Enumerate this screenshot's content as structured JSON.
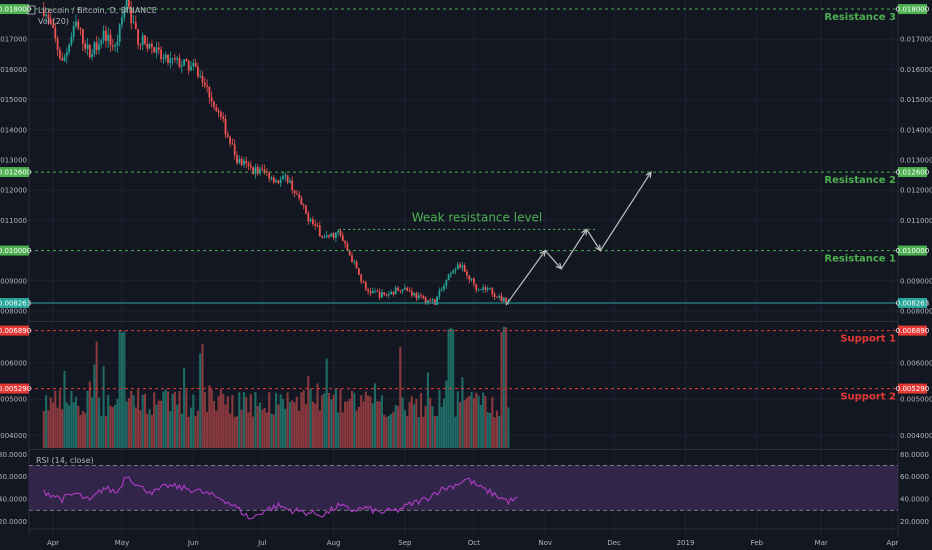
{
  "window": {
    "title": "Litecoin / Bitcoin, D, BINANCE"
  },
  "legend": {
    "main": "Litecoin / Bitcoin, D, BINANCE",
    "volume": "Vol (20)",
    "rsi": "RSI (14, close)"
  },
  "colors": {
    "background": "#131722",
    "grid": "#1e2230",
    "up": "#26a69a",
    "down": "#ef5350",
    "volume_up": "#1f6b66",
    "volume_down": "#8a3a3e",
    "resistance": "#4caf50",
    "support": "#e53935",
    "current_price": "#26a69a",
    "projection": "#c0c0c0",
    "rsi_line": "#b23cc6",
    "rsi_band": "#3a2a55",
    "axis_text": "#b2b5be"
  },
  "chart_data": [
    {
      "type": "candlestick",
      "title": "Litecoin / Bitcoin, D, BINANCE",
      "y_ticks": [
        "0.017000",
        "0.016000",
        "0.015000",
        "0.014000",
        "0.013000",
        "0.012000",
        "0.011000",
        "0.009000",
        "0.008000"
      ],
      "ylim": [
        0.0077,
        0.0183
      ],
      "x_ticks": [
        {
          "label": "Apr",
          "day": 0
        },
        {
          "label": "May",
          "day": 30
        },
        {
          "label": "Jun",
          "day": 61
        },
        {
          "label": "Jul",
          "day": 91
        },
        {
          "label": "Aug",
          "day": 122
        },
        {
          "label": "Sep",
          "day": 153
        },
        {
          "label": "Oct",
          "day": 183
        },
        {
          "label": "Nov",
          "day": 214
        },
        {
          "label": "Dec",
          "day": 244
        },
        {
          "label": "2019",
          "day": 275
        },
        {
          "label": "Feb",
          "day": 306
        },
        {
          "label": "Mar",
          "day": 334
        },
        {
          "label": "Apr",
          "day": 365
        }
      ],
      "price_path": [
        [
          -4,
          0.018
        ],
        [
          0,
          0.0172
        ],
        [
          4,
          0.0162
        ],
        [
          10,
          0.0175
        ],
        [
          16,
          0.0165
        ],
        [
          22,
          0.0172
        ],
        [
          27,
          0.0167
        ],
        [
          32,
          0.0182
        ],
        [
          37,
          0.017
        ],
        [
          42,
          0.0168
        ],
        [
          48,
          0.0163
        ],
        [
          56,
          0.0162
        ],
        [
          62,
          0.016
        ],
        [
          68,
          0.0152
        ],
        [
          74,
          0.0142
        ],
        [
          80,
          0.013
        ],
        [
          86,
          0.0127
        ],
        [
          92,
          0.0126
        ],
        [
          98,
          0.0123
        ],
        [
          102,
          0.0124
        ],
        [
          110,
          0.0112
        ],
        [
          118,
          0.0104
        ],
        [
          124,
          0.0106
        ],
        [
          130,
          0.0097
        ],
        [
          136,
          0.0087
        ],
        [
          144,
          0.0085
        ],
        [
          152,
          0.0088
        ],
        [
          160,
          0.0084
        ],
        [
          166,
          0.0083
        ],
        [
          172,
          0.0091
        ],
        [
          176,
          0.0096
        ],
        [
          184,
          0.0088
        ],
        [
          190,
          0.0087
        ],
        [
          194,
          0.0084
        ],
        [
          198,
          0.0083
        ]
      ],
      "levels": [
        {
          "name": "Resistance 3",
          "price": 0.018,
          "tag": "0.018000",
          "kind": "resistance"
        },
        {
          "name": "Resistance 2",
          "price": 0.0126,
          "tag": "0.012600",
          "kind": "resistance"
        },
        {
          "name": "Resistance 1",
          "price": 0.01,
          "tag": "0.010000",
          "kind": "resistance"
        }
      ],
      "weak_resistance": {
        "label": "Weak resistance level",
        "price": 0.0107,
        "from_day": 124,
        "to_day": 236
      },
      "current_price": {
        "value": 0.008263,
        "tag": "0.008263"
      },
      "projection": [
        [
          197,
          0.0082
        ],
        [
          214,
          0.01
        ],
        [
          221,
          0.0094
        ],
        [
          232,
          0.0107
        ],
        [
          238,
          0.01
        ],
        [
          260,
          0.0126
        ]
      ]
    },
    {
      "type": "bar",
      "title": "Vol (20)",
      "y_ticks": [
        "0.006000",
        "0.005000",
        "0.004000"
      ],
      "ylim": [
        0.00365,
        0.0071
      ],
      "levels": [
        {
          "name": "Support 1",
          "price": 0.00689,
          "tag": "0.006890",
          "kind": "support"
        },
        {
          "name": "Support 2",
          "price": 0.00529,
          "tag": "0.005290",
          "kind": "support"
        }
      ]
    },
    {
      "type": "line",
      "title": "RSI (14, close)",
      "y_ticks": [
        "80.0000",
        "60.0000",
        "40.0000",
        "20.0000"
      ],
      "ylim": [
        15,
        83
      ],
      "bands": [
        30,
        70
      ],
      "path": [
        [
          -4,
          47
        ],
        [
          4,
          40
        ],
        [
          10,
          45
        ],
        [
          16,
          38
        ],
        [
          22,
          50
        ],
        [
          28,
          46
        ],
        [
          32,
          62
        ],
        [
          38,
          50
        ],
        [
          44,
          46
        ],
        [
          50,
          52
        ],
        [
          56,
          50
        ],
        [
          62,
          48
        ],
        [
          68,
          44
        ],
        [
          74,
          40
        ],
        [
          80,
          32
        ],
        [
          86,
          22
        ],
        [
          92,
          30
        ],
        [
          98,
          34
        ],
        [
          104,
          30
        ],
        [
          110,
          28
        ],
        [
          118,
          26
        ],
        [
          124,
          34
        ],
        [
          130,
          30
        ],
        [
          136,
          32
        ],
        [
          142,
          28
        ],
        [
          150,
          30
        ],
        [
          156,
          36
        ],
        [
          162,
          40
        ],
        [
          168,
          48
        ],
        [
          174,
          52
        ],
        [
          180,
          58
        ],
        [
          186,
          50
        ],
        [
          192,
          44
        ],
        [
          198,
          38
        ],
        [
          202,
          40
        ]
      ]
    }
  ]
}
